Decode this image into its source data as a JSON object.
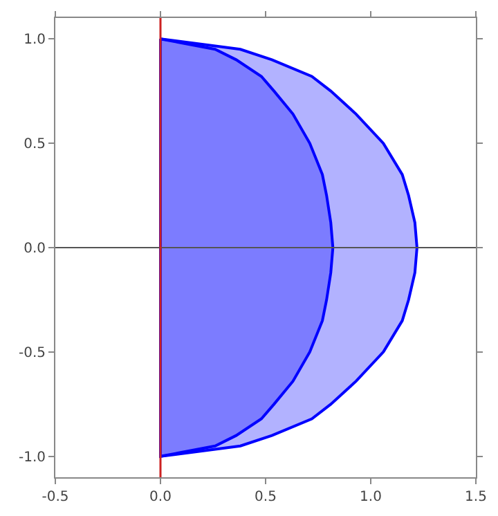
{
  "chart_data": {
    "type": "area",
    "xlim": [
      -0.5,
      1.5
    ],
    "ylim": [
      -1.1,
      1.1
    ],
    "xticks": [
      {
        "value": -0.5,
        "label": "-0.5"
      },
      {
        "value": 0,
        "label": "0.0"
      },
      {
        "value": 0.5,
        "label": "0.5"
      },
      {
        "value": 1,
        "label": "1.0"
      },
      {
        "value": 1.5,
        "label": "1.5"
      }
    ],
    "yticks": [
      {
        "value": -1,
        "label": "-1.0"
      },
      {
        "value": -0.5,
        "label": "-0.5"
      },
      {
        "value": 0,
        "label": "0.0"
      },
      {
        "value": 0.5,
        "label": "0.5"
      },
      {
        "value": 1,
        "label": "1.0"
      }
    ],
    "series": [
      {
        "color": "#0000ff",
        "x": [
          0,
          0.38,
          0.53,
          0.72,
          0.81,
          0.93,
          1.06,
          1.15,
          1.18,
          1.21,
          1.22,
          1.21,
          1.18,
          1.15,
          1.06,
          0.93,
          0.81,
          0.72,
          0.53,
          0.38,
          0,
          0
        ],
        "values": [
          1,
          0.95,
          0.9,
          0.82,
          0.75,
          0.64,
          0.5,
          0.35,
          0.25,
          0.12,
          0,
          -0.12,
          -0.25,
          -0.35,
          -0.5,
          -0.64,
          -0.75,
          -0.82,
          -0.9,
          -0.95,
          -1,
          1
        ]
      },
      {
        "color": "#0000ff",
        "x": [
          0,
          0.26,
          0.36,
          0.48,
          0.54,
          0.63,
          0.71,
          0.77,
          0.79,
          0.81,
          0.82,
          0.81,
          0.79,
          0.77,
          0.71,
          0.63,
          0.54,
          0.48,
          0.36,
          0.26,
          0,
          0
        ],
        "values": [
          1,
          0.95,
          0.9,
          0.82,
          0.75,
          0.64,
          0.5,
          0.35,
          0.25,
          0.12,
          0,
          -0.12,
          -0.25,
          -0.35,
          -0.5,
          -0.64,
          -0.75,
          -0.82,
          -0.9,
          -0.95,
          -1,
          1
        ]
      }
    ],
    "ref_lines": [
      {
        "axis": "y",
        "value": 0,
        "color": "#555555"
      },
      {
        "axis": "x",
        "value": 0,
        "color": "#cc2222"
      }
    ]
  }
}
